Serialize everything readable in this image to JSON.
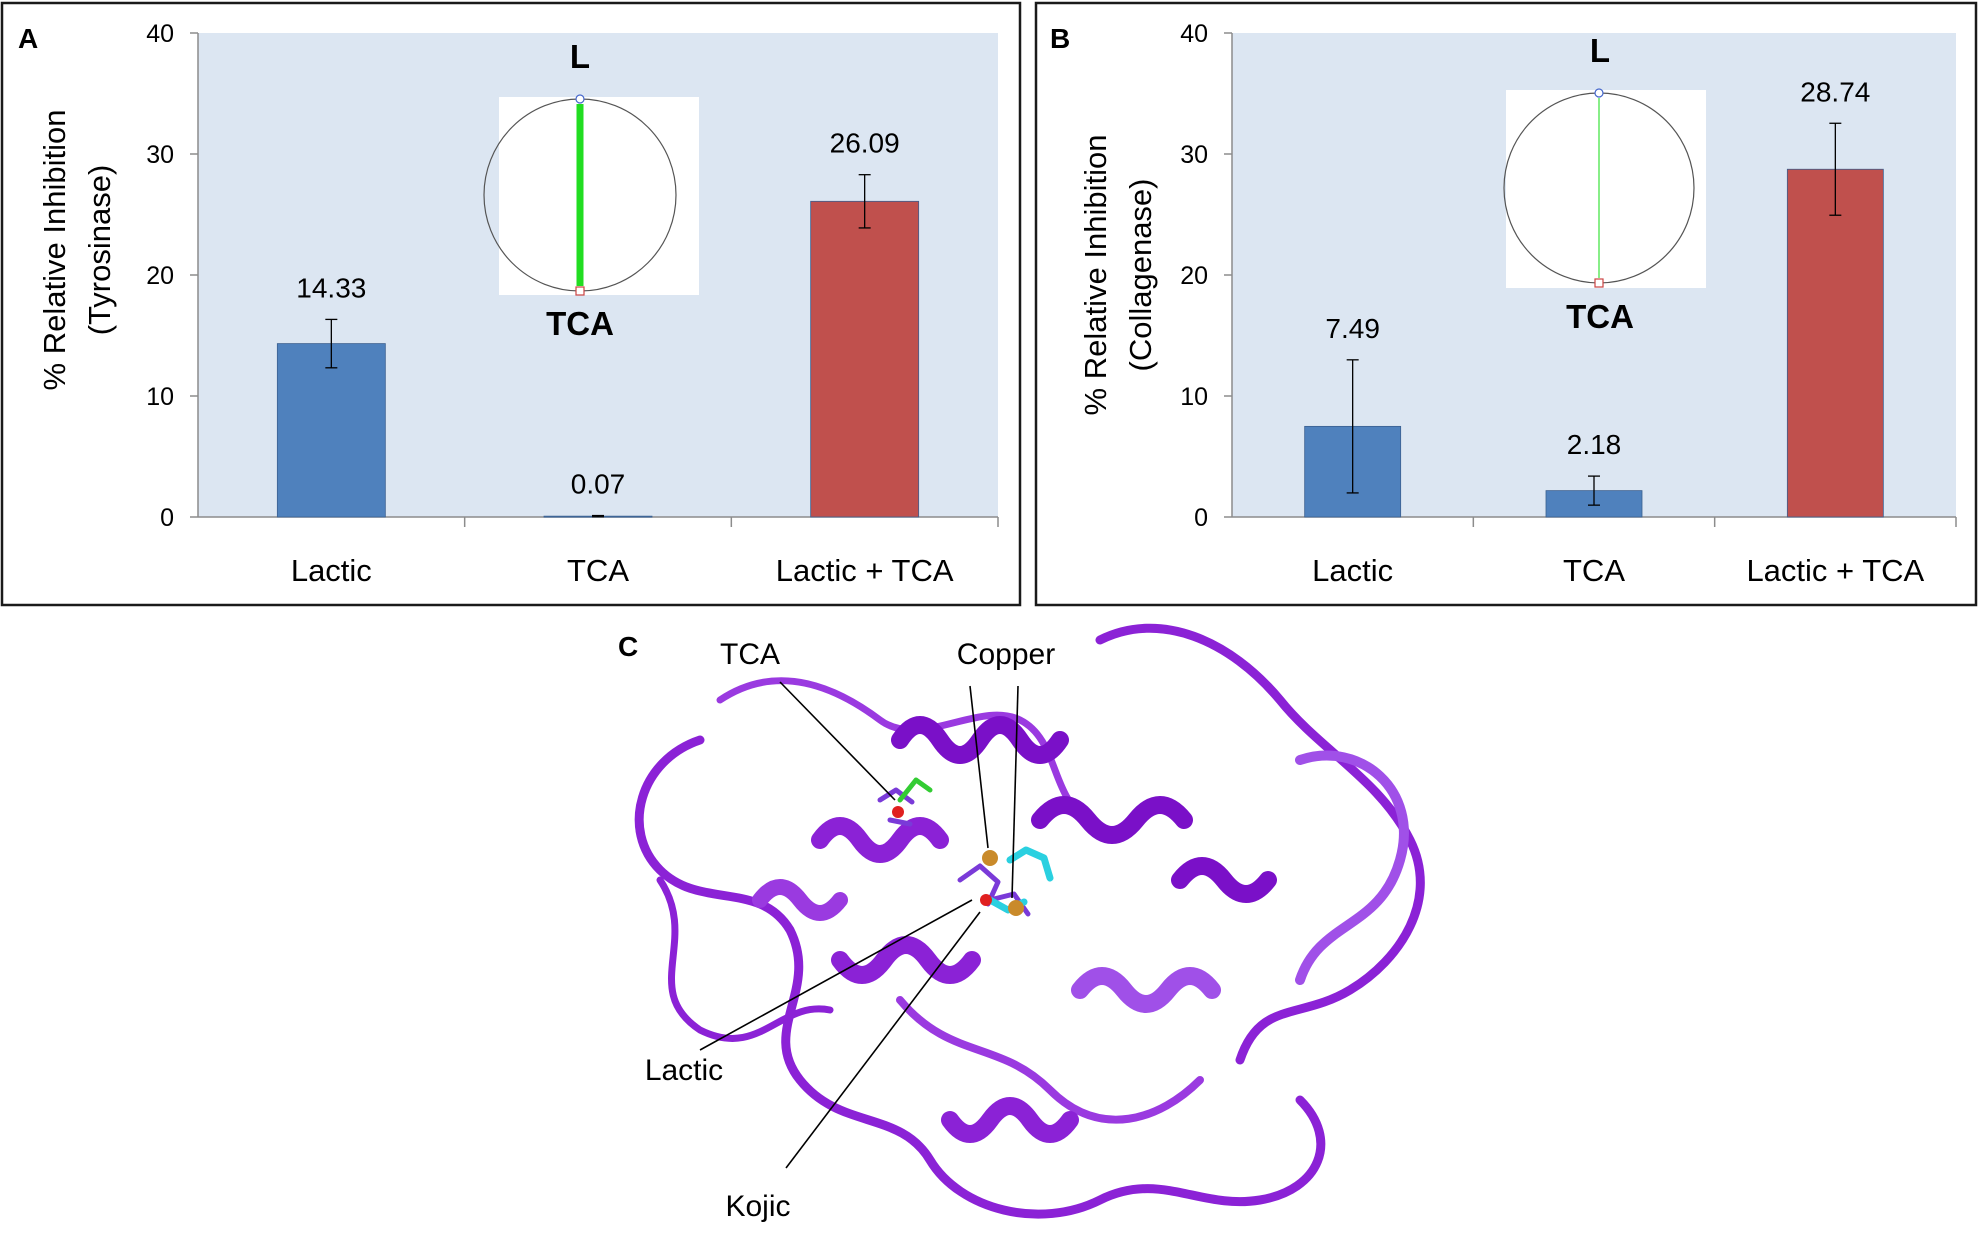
{
  "chart_data": [
    {
      "panel": "A",
      "type": "bar",
      "ylabel": "% Relative Inhibition (Tyrosinase)",
      "ylabel_lines": [
        "% Relative Inhibition",
        "(Tyrosinase)"
      ],
      "ylim": [
        0,
        40
      ],
      "yticks": [
        0,
        10,
        20,
        30,
        40
      ],
      "grid": false,
      "categories": [
        "Lactic",
        "TCA",
        "Lactic + TCA"
      ],
      "values": [
        14.33,
        0.07,
        26.09
      ],
      "value_labels": [
        "14.33",
        "0.07",
        "26.09"
      ],
      "errors": [
        2.0,
        0.05,
        2.2
      ],
      "bar_colors": [
        "#4f81bd",
        "#4f81bd",
        "#c0504d"
      ],
      "inset": {
        "top_label": "L",
        "bottom_label": "TCA",
        "line_color": "#22dd22"
      }
    },
    {
      "panel": "B",
      "type": "bar",
      "ylabel": "% Relative Inhibition (Collagenase)",
      "ylabel_lines": [
        "% Relative Inhibition",
        "(Collagenase)"
      ],
      "ylim": [
        0,
        40
      ],
      "yticks": [
        0,
        10,
        20,
        30,
        40
      ],
      "grid": false,
      "categories": [
        "Lactic",
        "TCA",
        "Lactic + TCA"
      ],
      "values": [
        7.49,
        2.18,
        28.74
      ],
      "value_labels": [
        "7.49",
        "2.18",
        "28.74"
      ],
      "errors": [
        5.5,
        1.2,
        3.8
      ],
      "bar_colors": [
        "#4f81bd",
        "#4f81bd",
        "#c0504d"
      ],
      "inset": {
        "top_label": "L",
        "bottom_label": "TCA",
        "line_color": "#88ee88"
      }
    }
  ],
  "panel_c": {
    "letter": "C",
    "labels": {
      "tca": "TCA",
      "copper": "Copper",
      "lactic": "Lactic",
      "kojic": "Kojic"
    },
    "ribbon_color": "#8b22d6"
  },
  "colors": {
    "plot_bg": "#dce6f2",
    "frame": "#1a1a1a"
  }
}
